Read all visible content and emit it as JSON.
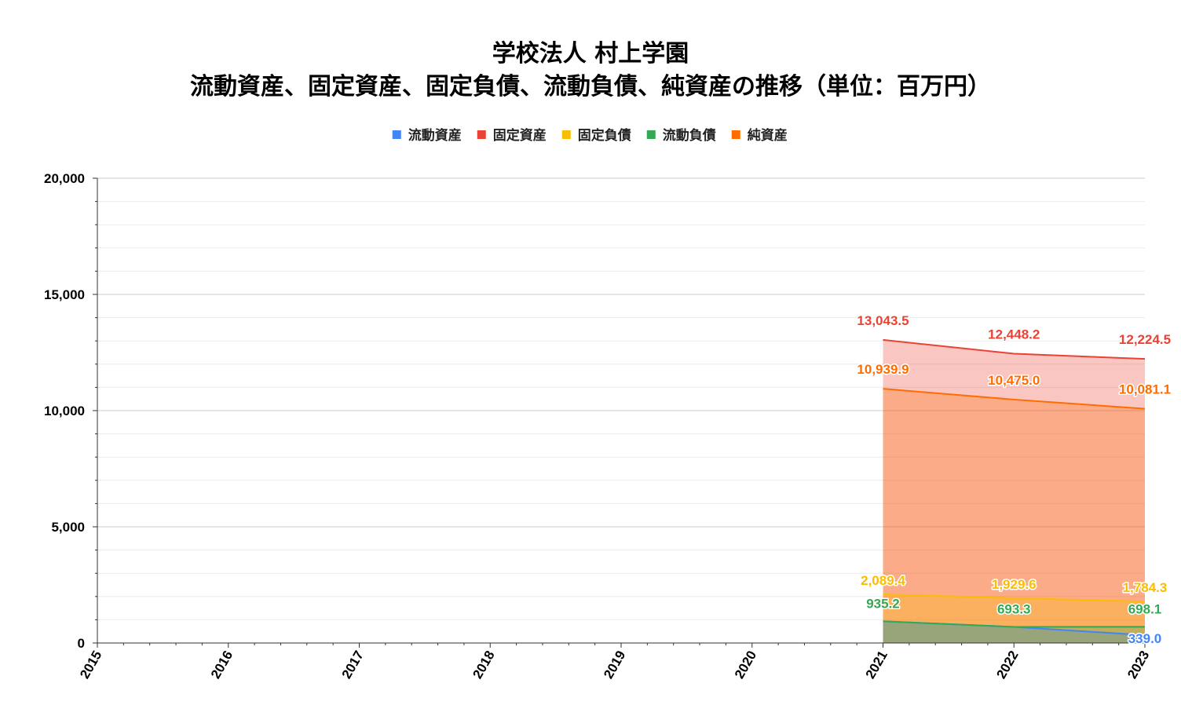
{
  "chart_data": {
    "type": "area",
    "title_line1": "学校法人 村上学園",
    "title_line2": "流動資産、固定資産、固定負債、流動負債、純資産の推移（単位：百万円）",
    "x": [
      "2015",
      "2016",
      "2017",
      "2018",
      "2019",
      "2020",
      "2021",
      "2022",
      "2023"
    ],
    "ylim": [
      0,
      20000
    ],
    "yticks": [
      {
        "value": 0,
        "label": "0"
      },
      {
        "value": 5000,
        "label": "5,000"
      },
      {
        "value": 10000,
        "label": "10,000"
      },
      {
        "value": 15000,
        "label": "15,000"
      },
      {
        "value": 20000,
        "label": "20,000"
      }
    ],
    "legend_position": "top",
    "grid": true,
    "series": [
      {
        "name": "流動資産",
        "color": "#4285F4",
        "values": [
          null,
          null,
          null,
          null,
          null,
          null,
          935.2,
          693.3,
          339.0
        ],
        "labels": [
          "",
          "",
          "",
          "",
          "",
          "",
          "",
          "",
          "339.0"
        ]
      },
      {
        "name": "固定資産",
        "color": "#EA4335",
        "values": [
          null,
          null,
          null,
          null,
          null,
          null,
          13043.5,
          12448.2,
          12224.5
        ],
        "labels": [
          "",
          "",
          "",
          "",
          "",
          "",
          "13,043.5",
          "12,448.2",
          "12,224.5"
        ]
      },
      {
        "name": "固定負債",
        "color": "#FBBC04",
        "values": [
          null,
          null,
          null,
          null,
          null,
          null,
          2089.4,
          1929.6,
          1784.3
        ],
        "labels": [
          "",
          "",
          "",
          "",
          "",
          "",
          "2,089.4",
          "1,929.6",
          "1,784.3"
        ]
      },
      {
        "name": "流動負債",
        "color": "#34A853",
        "values": [
          null,
          null,
          null,
          null,
          null,
          null,
          935.2,
          693.3,
          698.1
        ],
        "labels": [
          "",
          "",
          "",
          "",
          "",
          "",
          "935.2",
          "693.3",
          "698.1"
        ]
      },
      {
        "name": "純資産",
        "color": "#FF6D01",
        "values": [
          null,
          null,
          null,
          null,
          null,
          null,
          10939.9,
          10475.0,
          10081.1
        ],
        "labels": [
          "",
          "",
          "",
          "",
          "",
          "",
          "10,939.9",
          "10,475.0",
          "10,081.1"
        ]
      }
    ]
  }
}
